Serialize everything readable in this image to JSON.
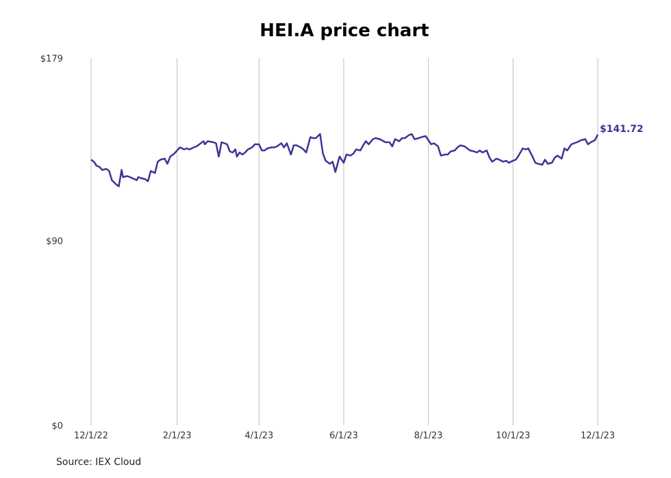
{
  "chart_data": {
    "type": "line",
    "title": "HEI.A price chart",
    "source": "Source: IEX Cloud",
    "xlabel": "",
    "ylabel": "",
    "x_ticks": [
      "12/1/22",
      "2/1/23",
      "4/1/23",
      "6/1/23",
      "8/1/23",
      "10/1/23",
      "12/1/23"
    ],
    "y_ticks": [
      "$0",
      "$90",
      "$179"
    ],
    "ylim": [
      0,
      179
    ],
    "xlim": [
      "2022-12-01",
      "2023-12-01"
    ],
    "grid": "vertical",
    "line_color": "#3a3594",
    "last_value_label": "$141.72",
    "series": [
      {
        "name": "",
        "points": [
          [
            "2022-12-01",
            129.5
          ],
          [
            "2022-12-03",
            128.5
          ],
          [
            "2022-12-05",
            126.5
          ],
          [
            "2022-12-07",
            126.0
          ],
          [
            "2022-12-09",
            124.5
          ],
          [
            "2022-12-12",
            125.0
          ],
          [
            "2022-12-14",
            124.0
          ],
          [
            "2022-12-16",
            119.5
          ],
          [
            "2022-12-19",
            117.5
          ],
          [
            "2022-12-21",
            116.5
          ],
          [
            "2022-12-23",
            124.5
          ],
          [
            "2022-12-24",
            121.0
          ],
          [
            "2022-12-27",
            121.5
          ],
          [
            "2022-12-29",
            121.0
          ],
          [
            "2023-01-03",
            119.5
          ],
          [
            "2023-01-04",
            121.0
          ],
          [
            "2023-01-06",
            120.5
          ],
          [
            "2023-01-09",
            120.0
          ],
          [
            "2023-01-11",
            119.0
          ],
          [
            "2023-01-13",
            124.0
          ],
          [
            "2023-01-16",
            123.0
          ],
          [
            "2023-01-18",
            128.5
          ],
          [
            "2023-01-20",
            129.5
          ],
          [
            "2023-01-23",
            130.0
          ],
          [
            "2023-01-25",
            127.5
          ],
          [
            "2023-01-27",
            131.0
          ],
          [
            "2023-01-30",
            132.5
          ],
          [
            "2023-02-01",
            134.0
          ],
          [
            "2023-02-03",
            135.5
          ],
          [
            "2023-02-06",
            134.5
          ],
          [
            "2023-02-08",
            135.0
          ],
          [
            "2023-02-10",
            134.5
          ],
          [
            "2023-02-13",
            135.5
          ],
          [
            "2023-02-15",
            136.0
          ],
          [
            "2023-02-17",
            137.0
          ],
          [
            "2023-02-20",
            138.5
          ],
          [
            "2023-02-21",
            137.0
          ],
          [
            "2023-02-23",
            138.5
          ],
          [
            "2023-02-27",
            138.0
          ],
          [
            "2023-03-01",
            137.5
          ],
          [
            "2023-03-03",
            131.0
          ],
          [
            "2023-03-05",
            138.0
          ],
          [
            "2023-03-07",
            137.5
          ],
          [
            "2023-03-09",
            137.0
          ],
          [
            "2023-03-11",
            133.5
          ],
          [
            "2023-03-13",
            133.0
          ],
          [
            "2023-03-15",
            134.5
          ],
          [
            "2023-03-16",
            131.0
          ],
          [
            "2023-03-18",
            133.0
          ],
          [
            "2023-03-20",
            132.0
          ],
          [
            "2023-03-22",
            133.0
          ],
          [
            "2023-03-24",
            134.5
          ],
          [
            "2023-03-27",
            135.5
          ],
          [
            "2023-03-29",
            137.0
          ],
          [
            "2023-04-01",
            137.0
          ],
          [
            "2023-04-03",
            134.0
          ],
          [
            "2023-04-05",
            134.0
          ],
          [
            "2023-04-07",
            135.0
          ],
          [
            "2023-04-10",
            135.5
          ],
          [
            "2023-04-12",
            135.5
          ],
          [
            "2023-04-14",
            136.0
          ],
          [
            "2023-04-17",
            137.5
          ],
          [
            "2023-04-19",
            135.5
          ],
          [
            "2023-04-21",
            137.5
          ],
          [
            "2023-04-24",
            132.0
          ],
          [
            "2023-04-26",
            136.5
          ],
          [
            "2023-04-28",
            136.5
          ],
          [
            "2023-05-01",
            135.5
          ],
          [
            "2023-05-03",
            134.5
          ],
          [
            "2023-05-05",
            133.0
          ],
          [
            "2023-05-08",
            140.5
          ],
          [
            "2023-05-10",
            140.0
          ],
          [
            "2023-05-12",
            140.0
          ],
          [
            "2023-05-15",
            142.0
          ],
          [
            "2023-05-17",
            132.5
          ],
          [
            "2023-05-19",
            129.0
          ],
          [
            "2023-05-22",
            127.5
          ],
          [
            "2023-05-24",
            128.5
          ],
          [
            "2023-05-26",
            123.5
          ],
          [
            "2023-05-29",
            131.0
          ],
          [
            "2023-06-01",
            128.0
          ],
          [
            "2023-06-03",
            132.0
          ],
          [
            "2023-06-06",
            131.5
          ],
          [
            "2023-06-08",
            132.5
          ],
          [
            "2023-06-10",
            134.5
          ],
          [
            "2023-06-13",
            134.0
          ],
          [
            "2023-06-15",
            136.5
          ],
          [
            "2023-06-17",
            138.5
          ],
          [
            "2023-06-19",
            137.0
          ],
          [
            "2023-06-22",
            139.5
          ],
          [
            "2023-06-24",
            140.0
          ],
          [
            "2023-06-27",
            139.5
          ],
          [
            "2023-07-01",
            138.0
          ],
          [
            "2023-07-04",
            138.0
          ],
          [
            "2023-07-06",
            136.0
          ],
          [
            "2023-07-08",
            139.5
          ],
          [
            "2023-07-11",
            138.5
          ],
          [
            "2023-07-13",
            140.0
          ],
          [
            "2023-07-15",
            140.0
          ],
          [
            "2023-07-18",
            141.5
          ],
          [
            "2023-07-20",
            142.0
          ],
          [
            "2023-07-22",
            139.5
          ],
          [
            "2023-07-25",
            140.0
          ],
          [
            "2023-07-27",
            140.5
          ],
          [
            "2023-07-30",
            141.0
          ],
          [
            "2023-08-01",
            139.0
          ],
          [
            "2023-08-03",
            137.0
          ],
          [
            "2023-08-05",
            137.5
          ],
          [
            "2023-08-08",
            136.0
          ],
          [
            "2023-08-10",
            131.5
          ],
          [
            "2023-08-13",
            132.0
          ],
          [
            "2023-08-15",
            132.0
          ],
          [
            "2023-08-17",
            133.5
          ],
          [
            "2023-08-20",
            134.0
          ],
          [
            "2023-08-22",
            135.5
          ],
          [
            "2023-08-24",
            136.5
          ],
          [
            "2023-08-27",
            136.0
          ],
          [
            "2023-08-29",
            135.0
          ],
          [
            "2023-08-31",
            134.0
          ],
          [
            "2023-09-03",
            133.5
          ],
          [
            "2023-09-05",
            133.0
          ],
          [
            "2023-09-07",
            134.0
          ],
          [
            "2023-09-09",
            133.0
          ],
          [
            "2023-09-12",
            134.0
          ],
          [
            "2023-09-14",
            130.5
          ],
          [
            "2023-09-16",
            128.5
          ],
          [
            "2023-09-19",
            130.0
          ],
          [
            "2023-09-21",
            129.5
          ],
          [
            "2023-09-24",
            128.5
          ],
          [
            "2023-09-26",
            129.0
          ],
          [
            "2023-09-28",
            128.0
          ],
          [
            "2023-10-01",
            129.0
          ],
          [
            "2023-10-03",
            129.5
          ],
          [
            "2023-10-05",
            131.5
          ],
          [
            "2023-10-08",
            135.0
          ],
          [
            "2023-10-10",
            134.5
          ],
          [
            "2023-10-12",
            135.0
          ],
          [
            "2023-10-15",
            131.0
          ],
          [
            "2023-10-17",
            128.0
          ],
          [
            "2023-10-19",
            127.5
          ],
          [
            "2023-10-22",
            127.0
          ],
          [
            "2023-10-24",
            129.5
          ],
          [
            "2023-10-26",
            127.5
          ],
          [
            "2023-10-29",
            128.0
          ],
          [
            "2023-10-31",
            130.5
          ],
          [
            "2023-11-02",
            131.5
          ],
          [
            "2023-11-05",
            130.0
          ],
          [
            "2023-11-07",
            135.0
          ],
          [
            "2023-11-09",
            134.0
          ],
          [
            "2023-11-12",
            137.0
          ],
          [
            "2023-11-14",
            137.5
          ],
          [
            "2023-11-16",
            138.0
          ],
          [
            "2023-11-19",
            139.0
          ],
          [
            "2023-11-22",
            139.5
          ],
          [
            "2023-11-24",
            137.0
          ],
          [
            "2023-11-26",
            138.0
          ],
          [
            "2023-11-29",
            139.0
          ],
          [
            "2023-12-01",
            141.72
          ]
        ]
      }
    ]
  }
}
